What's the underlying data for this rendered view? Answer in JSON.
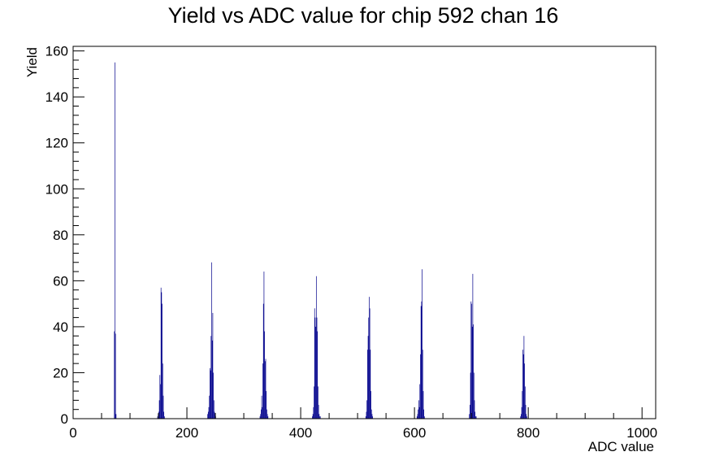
{
  "chart_data": {
    "type": "bar",
    "title": "Yield vs ADC value for chip 592 chan 16",
    "xlabel": "ADC value",
    "ylabel": "Yield",
    "xlim": [
      0,
      1024
    ],
    "ylim": [
      0,
      162
    ],
    "x_ticks": [
      0,
      200,
      400,
      600,
      800,
      1000
    ],
    "y_ticks": [
      0,
      20,
      40,
      60,
      80,
      100,
      120,
      140,
      160
    ],
    "grid": false,
    "legend": "none",
    "colors": {
      "series": "#00008b",
      "axis": "#000000",
      "background": "#ffffff"
    },
    "series": [
      {
        "x": [
          72,
          73,
          74,
          75,
          148,
          149,
          150,
          151,
          152,
          153,
          154,
          155,
          156,
          157,
          158,
          159,
          160,
          236,
          237,
          238,
          239,
          240,
          241,
          242,
          243,
          244,
          245,
          246,
          247,
          248,
          249,
          250,
          328,
          329,
          330,
          331,
          332,
          333,
          334,
          335,
          336,
          337,
          338,
          339,
          340,
          341,
          342,
          420,
          421,
          422,
          423,
          424,
          425,
          426,
          427,
          428,
          429,
          430,
          431,
          432,
          433,
          434,
          514,
          515,
          516,
          517,
          518,
          519,
          520,
          521,
          522,
          523,
          524,
          525,
          526,
          604,
          605,
          606,
          607,
          608,
          609,
          610,
          611,
          612,
          613,
          614,
          615,
          616,
          617,
          696,
          697,
          698,
          699,
          700,
          701,
          702,
          703,
          704,
          705,
          706,
          707,
          708,
          786,
          787,
          788,
          789,
          790,
          791,
          792,
          793,
          794,
          795,
          796,
          797
        ],
        "values": [
          38,
          155,
          37,
          2,
          1,
          2,
          3,
          8,
          19,
          15,
          57,
          55,
          50,
          24,
          10,
          3,
          1,
          2,
          3,
          5,
          10,
          22,
          21,
          36,
          68,
          34,
          46,
          20,
          8,
          3,
          2,
          1,
          1,
          2,
          4,
          10,
          5,
          24,
          50,
          64,
          38,
          25,
          26,
          12,
          4,
          2,
          1,
          1,
          2,
          5,
          14,
          48,
          44,
          40,
          62,
          44,
          38,
          14,
          6,
          2,
          1,
          1,
          1,
          3,
          8,
          30,
          36,
          44,
          53,
          48,
          30,
          12,
          4,
          2,
          1,
          1,
          2,
          4,
          8,
          5,
          15,
          28,
          49,
          51,
          65,
          30,
          12,
          4,
          1,
          2,
          6,
          20,
          51,
          50,
          40,
          63,
          41,
          20,
          8,
          3,
          1,
          1,
          1,
          2,
          5,
          12,
          30,
          28,
          36,
          24,
          14,
          6,
          2,
          1
        ]
      }
    ]
  }
}
